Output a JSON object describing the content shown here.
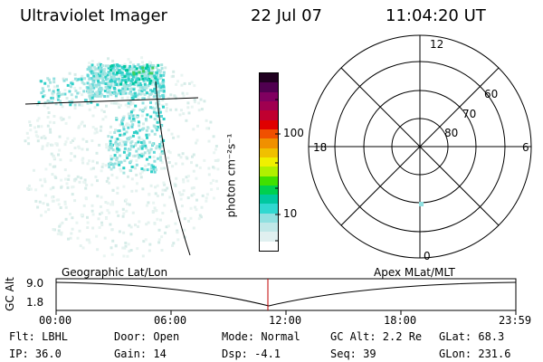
{
  "header": {
    "title": "Ultraviolet Imager",
    "date": "22 Jul 07",
    "time": "11:04:20 UT"
  },
  "colorbar": {
    "label": "photon cm⁻²s⁻¹",
    "tick_100": "100",
    "tick_10": "10",
    "colors": [
      "#ffffff",
      "#e0f0f0",
      "#c0e8e8",
      "#90e0e0",
      "#30d8d0",
      "#00c8a0",
      "#00d050",
      "#40e000",
      "#b0f000",
      "#f0f000",
      "#f0c000",
      "#f09000",
      "#f05000",
      "#e00000",
      "#c00030",
      "#a00050",
      "#800060",
      "#500050",
      "#200020"
    ]
  },
  "polar": {
    "mlt_labels": {
      "top": "12",
      "bottom": "0",
      "left": "18",
      "right": "6"
    },
    "lat_labels": [
      "60",
      "70",
      "80"
    ]
  },
  "timeline": {
    "y_axis_label": "GC Alt",
    "y_ticks": [
      "9.0",
      "1.8"
    ],
    "left_label": "Geographic Lat/Lon",
    "right_label": "Apex MLat/MLT",
    "x_ticks": [
      "00:00",
      "06:00",
      "12:00",
      "18:00",
      "23:59"
    ],
    "marker_time": "11:04:20"
  },
  "status": {
    "flt": "Flt: LBHL",
    "ip": "IP: 36.0",
    "door": "Door: Open",
    "gain": "Gain: 14",
    "mode": "Mode: Normal",
    "dsp": "Dsp:   -4.1",
    "gc_alt": "GC Alt: 2.2 Re",
    "seq": "Seq: 39",
    "glat": "GLat:  68.3",
    "glon": "GLon: 231.6"
  }
}
